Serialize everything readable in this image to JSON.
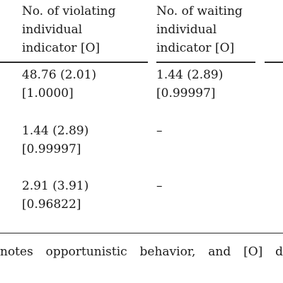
{
  "table": {
    "headers": [
      [
        "No. of violating",
        "individual",
        "indicator [O]"
      ],
      [
        "No. of waiting",
        "individual",
        "indicator [O]"
      ]
    ],
    "rows": [
      {
        "violating": [
          "48.76 (2.01)",
          "[1.0000]"
        ],
        "waiting": [
          "1.44 (2.89)",
          "[0.99997]"
        ]
      },
      {
        "violating": [
          "1.44 (2.89)",
          "[0.99997]"
        ],
        "waiting": [
          "–"
        ]
      },
      {
        "violating": [
          "2.91 (3.91)",
          "[0.96822]"
        ],
        "waiting": [
          "–"
        ]
      }
    ]
  },
  "footnote": "notes opportunistic behavior, and [O] d"
}
